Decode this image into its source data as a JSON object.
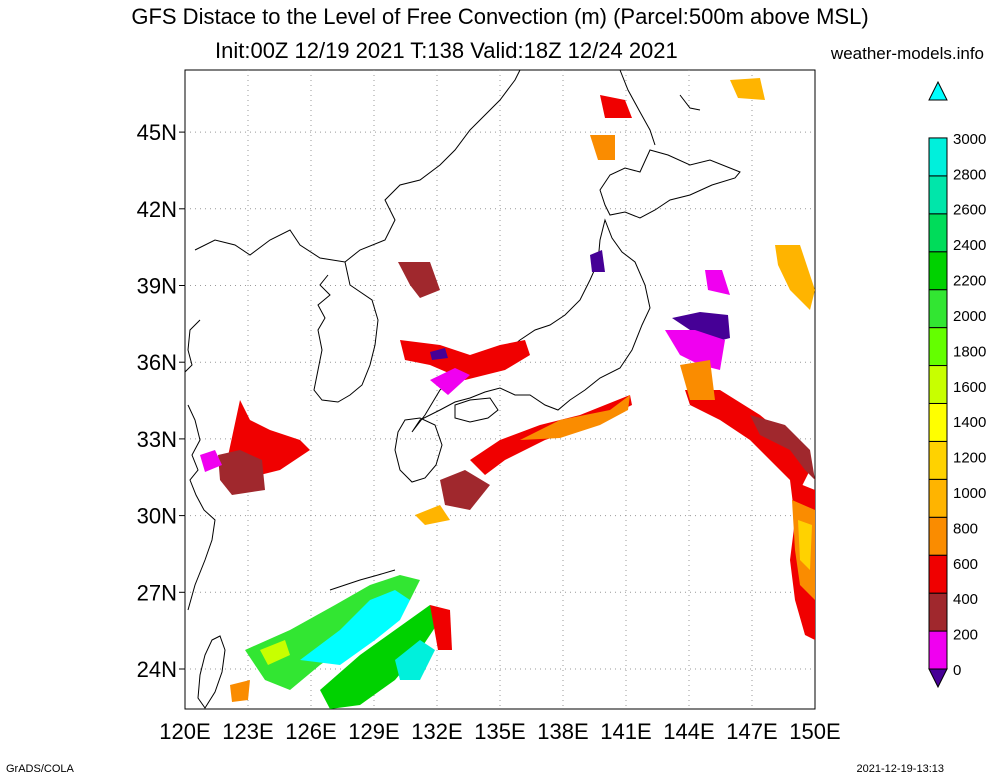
{
  "header": {
    "title_line1": "GFS Distace to the Level of Free Convection (m) (Parcel:500m above MSL)",
    "title_line2": "Init:00Z 12/19 2021 T:138 Valid:18Z 12/24 2021",
    "site": "weather-models.info"
  },
  "footer": {
    "left": "GrADS/COLA",
    "right": "2021-12-19-13:13"
  },
  "map": {
    "lon_ticks": [
      "120E",
      "123E",
      "126E",
      "129E",
      "132E",
      "135E",
      "138E",
      "141E",
      "144E",
      "147E",
      "150E"
    ],
    "lat_ticks": [
      "24N",
      "27N",
      "30N",
      "33N",
      "36N",
      "39N",
      "42N",
      "45N"
    ]
  },
  "colorbar": {
    "labels": [
      "0",
      "200",
      "400",
      "600",
      "800",
      "1000",
      "1200",
      "1400",
      "1600",
      "1800",
      "2000",
      "2200",
      "2400",
      "2600",
      "2800",
      "3000"
    ],
    "colors": [
      "#460096",
      "#f000f0",
      "#a0282d",
      "#f00000",
      "#fa8c00",
      "#ffb400",
      "#ffd200",
      "#ffff00",
      "#c8ff00",
      "#64ff00",
      "#32e632",
      "#00d200",
      "#00dc5a",
      "#00e6aa",
      "#00f0dc",
      "#00ffff"
    ]
  }
}
